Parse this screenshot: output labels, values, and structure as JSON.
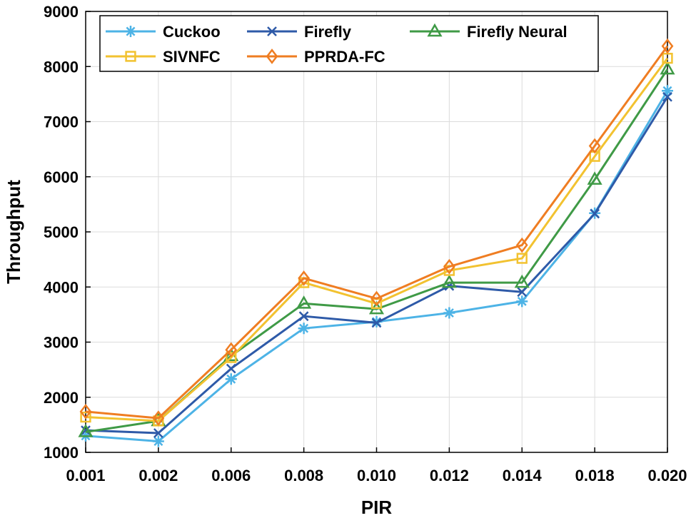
{
  "chart_data": {
    "type": "line",
    "title": "",
    "xlabel": "PIR",
    "ylabel": "Throughput",
    "categories": [
      "0.001",
      "0.002",
      "0.006",
      "0.008",
      "0.010",
      "0.012",
      "0.014",
      "0.018",
      "0.020"
    ],
    "ylim": [
      1000,
      9000
    ],
    "yticks": [
      "1000",
      "2000",
      "3000",
      "4000",
      "5000",
      "6000",
      "7000",
      "8000",
      "9000"
    ],
    "grid": true,
    "legend_position": "top-left",
    "series": [
      {
        "name": "Cuckoo",
        "color": "#4db3e6",
        "marker": "asterisk",
        "values": [
          1300,
          1200,
          2330,
          3250,
          3370,
          3530,
          3740,
          5340,
          7560
        ]
      },
      {
        "name": "Firefly",
        "color": "#2e5aa8",
        "marker": "x",
        "values": [
          1400,
          1350,
          2520,
          3470,
          3350,
          4020,
          3910,
          5330,
          7450
        ]
      },
      {
        "name": "Firefly Neural",
        "color": "#3f9a46",
        "marker": "triangle",
        "values": [
          1370,
          1570,
          2750,
          3700,
          3600,
          4080,
          4080,
          5950,
          7950
        ]
      },
      {
        "name": "SIVNFC",
        "color": "#f2c230",
        "marker": "square",
        "values": [
          1640,
          1570,
          2720,
          4080,
          3700,
          4300,
          4520,
          6370,
          8150
        ]
      },
      {
        "name": "PPRDA-FC",
        "color": "#ef7d22",
        "marker": "diamond",
        "values": [
          1740,
          1620,
          2860,
          4160,
          3790,
          4370,
          4760,
          6560,
          8370
        ]
      }
    ]
  }
}
